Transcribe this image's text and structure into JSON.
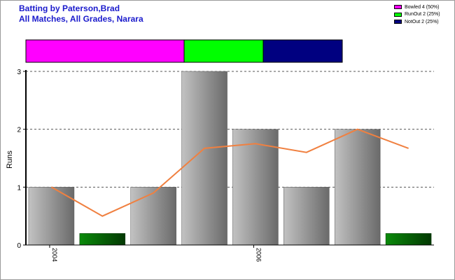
{
  "title": "Batting by Paterson,Brad",
  "subtitle": "All Matches, All Grades, Narara",
  "legend": [
    {
      "label": "Bowled 4 (50%)",
      "color": "#ff00ff"
    },
    {
      "label": "RunOut 2 (25%)",
      "color": "#00ff00"
    },
    {
      "label": "NotOut 2 (25%)",
      "color": "#000080"
    }
  ],
  "chart_data": {
    "type": "bar",
    "ylabel": "Runs",
    "ylim": [
      0,
      3
    ],
    "yticks": [
      0,
      1,
      2,
      3
    ],
    "grid": true,
    "bar_fill": "gray",
    "notout_fill": "green",
    "trend_color": "#f08040",
    "x_tick_labels": [
      "2004",
      "",
      "",
      "",
      "2006",
      "",
      "",
      ""
    ],
    "values": [
      1,
      0.2,
      1,
      3,
      2,
      1,
      2,
      0.2
    ],
    "dismissal": [
      "out",
      "notout",
      "out",
      "out",
      "out",
      "out",
      "out",
      "notout"
    ],
    "trend": [
      1,
      0.5,
      0.9,
      1.67,
      1.75,
      1.6,
      2.0,
      1.67
    ],
    "dismissal_breakdown": [
      {
        "name": "Bowled",
        "value": 4,
        "percent": 50,
        "color": "#ff00ff"
      },
      {
        "name": "RunOut",
        "value": 2,
        "percent": 25,
        "color": "#00ff00"
      },
      {
        "name": "NotOut",
        "value": 2,
        "percent": 25,
        "color": "#000080"
      }
    ]
  }
}
